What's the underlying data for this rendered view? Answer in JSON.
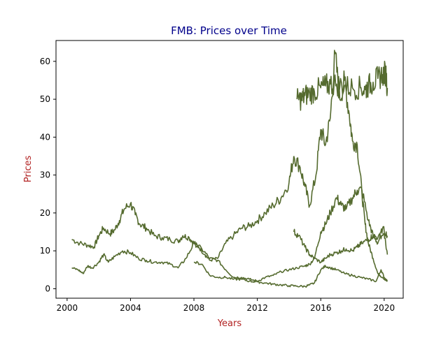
{
  "chart_data": {
    "type": "line",
    "title": "FMB: Prices over Time",
    "xlabel": "Years",
    "ylabel": "Prices",
    "xlim": [
      1999.3,
      2021.2
    ],
    "ylim": [
      -2.5,
      65.5
    ],
    "xticks": [
      2000,
      2004,
      2008,
      2012,
      2016,
      2020
    ],
    "yticks": [
      0,
      10,
      20,
      30,
      40,
      50,
      60
    ],
    "grid": false,
    "legend": "none",
    "colors": {
      "line": "#556b2f",
      "title": "#00008b",
      "axis_label": "#b22222",
      "axes": "#000000"
    },
    "series": [
      {
        "x": [
          2000.3,
          2000.8,
          2001.3,
          2001.7,
          2002.0,
          2002.3,
          2002.7,
          2003.0,
          2003.3,
          2003.6,
          2004.0,
          2004.3,
          2004.6,
          2005.0,
          2005.5,
          2006.0,
          2006.5,
          2007.0,
          2007.3,
          2007.7,
          2008.0,
          2008.3,
          2008.7,
          2009.0,
          2009.5,
          2010.0,
          2010.5,
          2011.0,
          2011.5,
          2012.0,
          2012.5,
          2013.0,
          2013.5,
          2014.0,
          2014.3
        ],
        "y": [
          13.0,
          12.0,
          11.5,
          11.0,
          14.0,
          16.0,
          14.5,
          15.5,
          18.0,
          21.0,
          22.5,
          19.5,
          17.0,
          16.0,
          14.0,
          13.5,
          13.0,
          12.5,
          14.0,
          13.5,
          12.0,
          11.0,
          9.0,
          7.5,
          8.0,
          12.0,
          14.0,
          16.0,
          16.5,
          18.0,
          20.0,
          22.0,
          24.0,
          28.0,
          35.0
        ]
      },
      {
        "x": [
          2014.3,
          2014.7,
          2015.0,
          2015.3,
          2015.7,
          2016.0,
          2016.3,
          2016.6,
          2016.9,
          2017.2,
          2017.5,
          2017.8,
          2018.0,
          2018.3,
          2018.6,
          2018.8,
          2019.0,
          2019.3,
          2019.6,
          2019.9,
          2020.2
        ],
        "y": [
          35.0,
          32.0,
          27.0,
          22.0,
          30.0,
          42.0,
          38.0,
          45.0,
          62.0,
          50.0,
          55.0,
          46.0,
          39.0,
          38.0,
          25.0,
          17.0,
          12.0,
          8.0,
          4.0,
          3.0,
          2.0
        ]
      },
      {
        "x": [
          2000.3,
          2000.7,
          2001.0,
          2001.3,
          2001.6,
          2002.0,
          2002.3,
          2002.6,
          2003.0,
          2003.5,
          2004.0,
          2004.5,
          2005.0,
          2005.5,
          2006.0,
          2006.5,
          2007.0,
          2007.5,
          2008.0,
          2008.5,
          2009.0,
          2009.5,
          2010.0,
          2010.5,
          2011.0,
          2011.5,
          2012.0,
          2012.5,
          2013.0,
          2013.5,
          2014.0,
          2014.5,
          2015.0,
          2015.3
        ],
        "y": [
          5.5,
          5.0,
          4.0,
          6.0,
          5.5,
          7.0,
          9.0,
          7.0,
          8.5,
          10.0,
          9.5,
          8.0,
          7.5,
          7.0,
          7.0,
          6.5,
          5.5,
          8.0,
          12.0,
          10.5,
          8.0,
          7.5,
          5.0,
          3.0,
          3.0,
          2.5,
          2.0,
          3.0,
          3.5,
          4.5,
          5.0,
          5.5,
          6.0,
          6.5
        ]
      },
      {
        "x": [
          2015.3,
          2015.6,
          2016.0,
          2016.3,
          2016.6,
          2017.0,
          2017.3,
          2017.6,
          2018.0,
          2018.3,
          2018.6,
          2019.0,
          2019.3,
          2019.6,
          2019.9,
          2020.2
        ],
        "y": [
          6.5,
          8.0,
          15.0,
          17.0,
          20.0,
          24.0,
          22.0,
          21.0,
          24.0,
          26.0,
          26.0,
          18.0,
          14.0,
          12.0,
          16.0,
          14.0
        ]
      },
      {
        "x": [
          2008.0,
          2008.5,
          2009.0,
          2009.5,
          2010.0,
          2010.5,
          2011.0,
          2011.5,
          2012.0,
          2012.5,
          2013.0,
          2013.5,
          2014.0,
          2014.5,
          2015.0,
          2015.3,
          2015.6,
          2016.0,
          2016.3,
          2016.6,
          2017.0,
          2017.5,
          2018.0,
          2018.5,
          2019.0,
          2019.5,
          2019.8,
          2020.0,
          2020.2
        ],
        "y": [
          7.0,
          6.5,
          3.5,
          3.0,
          3.0,
          2.5,
          2.5,
          2.0,
          1.8,
          1.5,
          1.2,
          1.0,
          0.8,
          0.7,
          0.6,
          1.0,
          1.5,
          5.0,
          6.0,
          5.5,
          5.0,
          4.0,
          3.5,
          3.0,
          2.5,
          2.0,
          5.0,
          3.0,
          2.0
        ]
      },
      {
        "x": [
          2014.3,
          2014.6,
          2015.0,
          2015.3,
          2015.6,
          2016.0,
          2016.3,
          2016.6,
          2017.0,
          2017.3,
          2017.6,
          2018.0,
          2018.3,
          2018.6,
          2019.0,
          2019.3,
          2019.6,
          2020.0,
          2020.2
        ],
        "y": [
          15.0,
          14.0,
          11.0,
          9.0,
          8.0,
          7.0,
          8.0,
          9.0,
          9.5,
          10.0,
          10.5,
          10.0,
          11.0,
          12.0,
          13.0,
          14.0,
          13.5,
          14.5,
          9.0
        ]
      },
      {
        "x": [
          2014.5,
          2014.8,
          2015.0,
          2015.3,
          2015.6,
          2016.0,
          2016.3,
          2016.6,
          2017.0,
          2017.5,
          2018.0,
          2018.5,
          2018.8,
          2019.0,
          2019.3,
          2019.6,
          2019.9,
          2020.1,
          2020.2
        ],
        "y": [
          50.0,
          50.0,
          51.0,
          51.5,
          52.0,
          53.0,
          53.5,
          54.0,
          54.0,
          53.5,
          53.0,
          53.0,
          52.5,
          53.5,
          54.5,
          55.5,
          56.5,
          57.0,
          53.0
        ]
      }
    ]
  }
}
